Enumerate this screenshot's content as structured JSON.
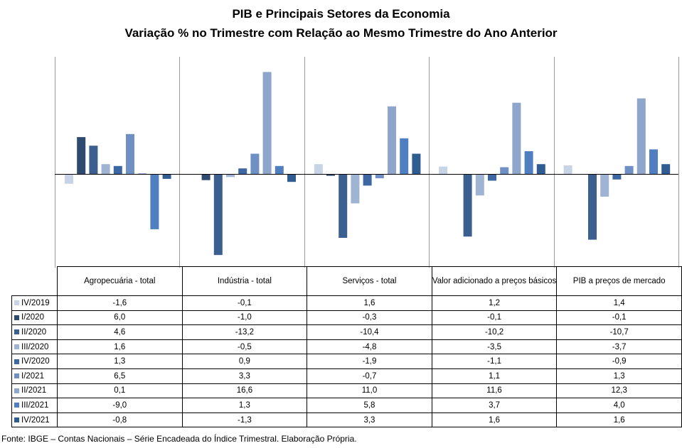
{
  "chart_data": {
    "type": "bar",
    "title": "PIB e Principais  Setores da Economia",
    "subtitle": "Variação % no Trimestre com Relação ao Mesmo Trimestre do Ano Anterior",
    "categories": [
      "Agropecuária - total",
      "Indústria - total",
      "Serviços - total",
      "Valor adicionado a preços básicos",
      "PIB a preços de mercado"
    ],
    "series": [
      {
        "name": "IV/2019",
        "color": "#c6d4e6",
        "values": [
          -1.6,
          -0.1,
          1.6,
          1.2,
          1.4
        ],
        "labels": [
          "-1,6",
          "-0,1",
          "1,6",
          "1,2",
          "1,4"
        ]
      },
      {
        "name": "I/2020",
        "color": "#2e4a6e",
        "values": [
          6.0,
          -1.0,
          -0.3,
          -0.1,
          -0.1
        ],
        "labels": [
          "6,0",
          "-1,0",
          "-0,3",
          "-0,1",
          "-0,1"
        ]
      },
      {
        "name": "II/2020",
        "color": "#3b5f8f",
        "values": [
          4.6,
          -13.2,
          -10.4,
          -10.2,
          -10.7
        ],
        "labels": [
          "4,6",
          "-13,2",
          "-10,4",
          "-10,2",
          "-10,7"
        ]
      },
      {
        "name": "III/2020",
        "color": "#9fb4d3",
        "values": [
          1.6,
          -0.5,
          -4.8,
          -3.5,
          -3.7
        ],
        "labels": [
          "1,6",
          "-0,5",
          "-4,8",
          "-3,5",
          "-3,7"
        ]
      },
      {
        "name": "IV/2020",
        "color": "#3d67a3",
        "values": [
          1.3,
          0.9,
          -1.9,
          -1.1,
          -0.9
        ],
        "labels": [
          "1,3",
          "0,9",
          "-1,9",
          "-1,1",
          "-0,9"
        ]
      },
      {
        "name": "I/2021",
        "color": "#6e90c4",
        "values": [
          6.5,
          3.3,
          -0.7,
          1.1,
          1.3
        ],
        "labels": [
          "6,5",
          "3,3",
          "-0,7",
          "1,1",
          "1,3"
        ]
      },
      {
        "name": "II/2021",
        "color": "#8ea5cc",
        "values": [
          0.1,
          16.6,
          11.0,
          11.6,
          12.3
        ],
        "labels": [
          "0,1",
          "16,6",
          "11,0",
          "11,6",
          "12,3"
        ]
      },
      {
        "name": "III/2021",
        "color": "#4f7fc0",
        "values": [
          -9.0,
          1.3,
          5.8,
          3.7,
          4.0
        ],
        "labels": [
          "-9,0",
          "1,3",
          "5,8",
          "3,7",
          "4,0"
        ]
      },
      {
        "name": "IV/2021",
        "color": "#2f5d92",
        "values": [
          -0.8,
          -1.3,
          3.3,
          1.6,
          1.6
        ],
        "labels": [
          "-0,8",
          "-1,3",
          "3,3",
          "1,6",
          "1,6"
        ]
      }
    ],
    "ylim": [
      -15,
      18
    ],
    "grid": false,
    "legend": "data-table"
  },
  "source": "Fonte: IBGE – Contas Nacionais – Série Encadeada do Índice Trimestral. Elaboração Própria."
}
